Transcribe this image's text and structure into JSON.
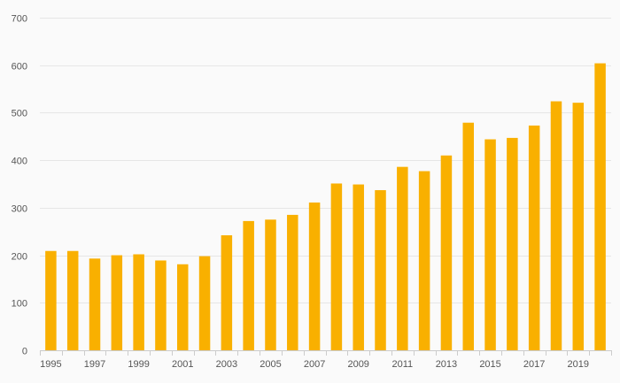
{
  "chart_data": {
    "type": "bar",
    "categories": [
      "1995",
      "1996",
      "1997",
      "1998",
      "1999",
      "2000",
      "2001",
      "2002",
      "2003",
      "2004",
      "2005",
      "2006",
      "2007",
      "2008",
      "2009",
      "2010",
      "2011",
      "2012",
      "2013",
      "2014",
      "2015",
      "2016",
      "2017",
      "2018",
      "2019",
      "2020"
    ],
    "x_tick_labels": [
      "1995",
      "1997",
      "1999",
      "2001",
      "2003",
      "2005",
      "2007",
      "2009",
      "2011",
      "2013",
      "2015",
      "2017",
      "2019"
    ],
    "values": [
      209,
      209,
      193,
      200,
      202,
      189,
      181,
      198,
      242,
      272,
      275,
      285,
      311,
      351,
      349,
      337,
      386,
      377,
      410,
      479,
      444,
      447,
      473,
      524,
      521,
      604
    ],
    "y_ticks": [
      0,
      100,
      200,
      300,
      400,
      500,
      600,
      700
    ],
    "ylim": [
      0,
      700
    ],
    "title": "",
    "xlabel": "",
    "ylabel": "",
    "grid": true,
    "legend": "none",
    "colors": {
      "bar": "#f9b000",
      "grid": "#e6e6e6",
      "axis": "#cccccc",
      "text": "#555555",
      "background": "#fafafa"
    }
  }
}
